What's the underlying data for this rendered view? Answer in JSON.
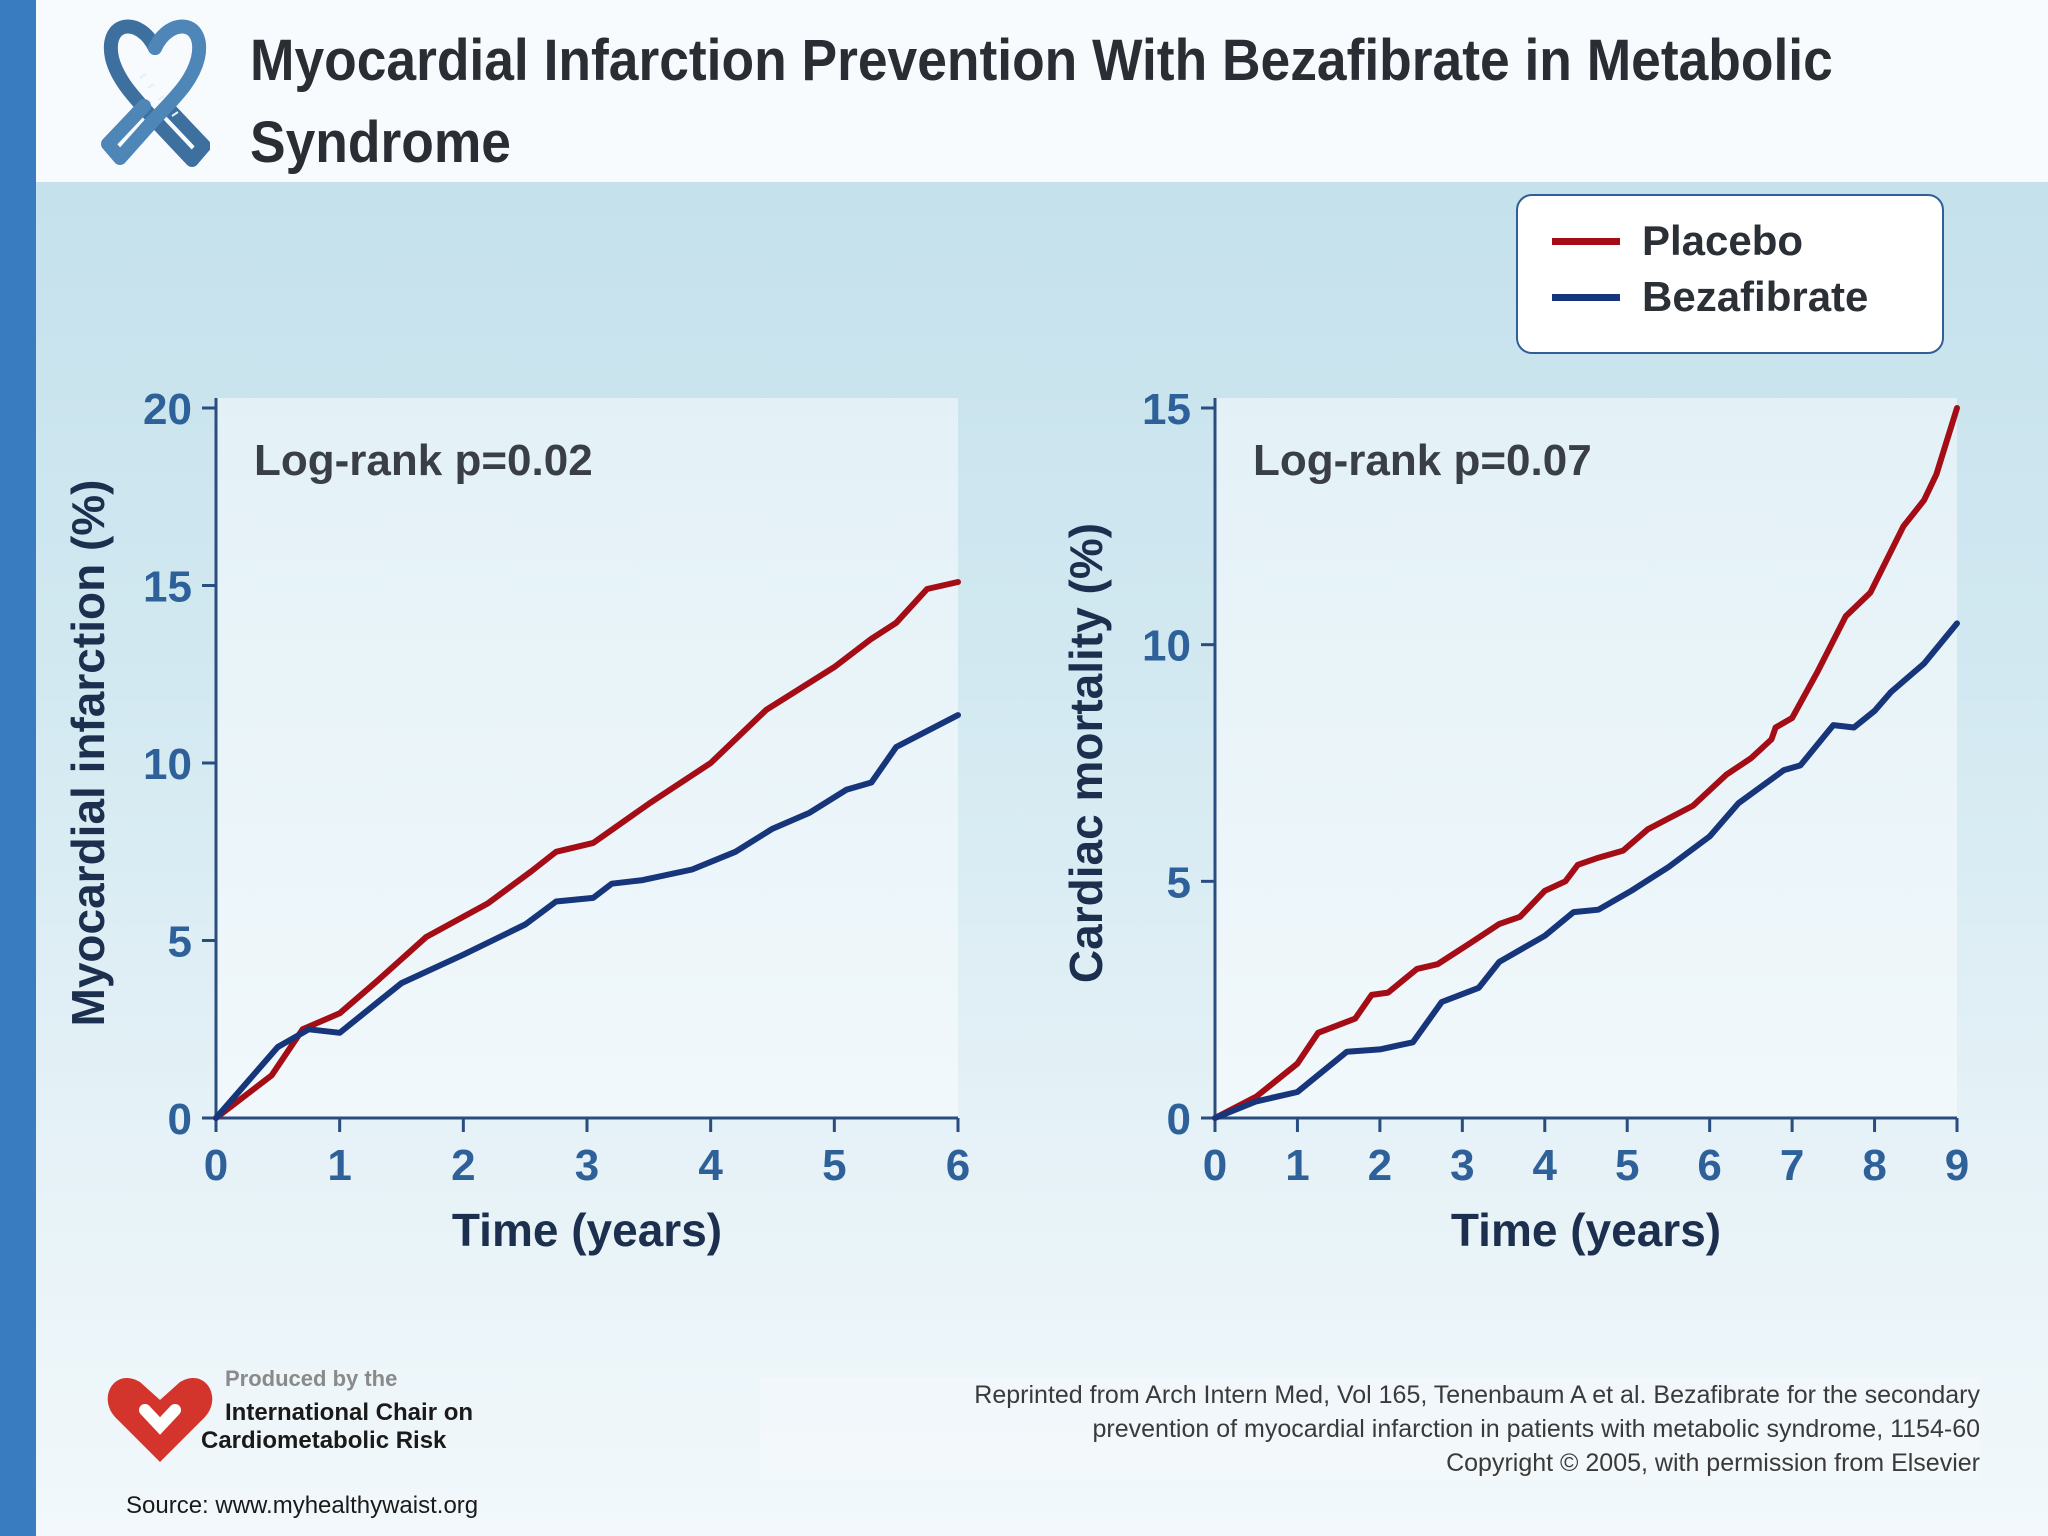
{
  "slide": {
    "title": "Myocardial Infarction Prevention With Bezafibrate in Metabolic Syndrome"
  },
  "legend": {
    "items": [
      {
        "label": "Placebo",
        "color": "#a50d16"
      },
      {
        "label": "Bezafibrate",
        "color": "#17357a"
      }
    ]
  },
  "chart_data": [
    {
      "type": "line",
      "annotation": "Log-rank p=0.02",
      "xlabel": "Time (years)",
      "ylabel": "Myocardial infarction (%)",
      "xlim": [
        0,
        6
      ],
      "ylim": [
        0,
        20
      ],
      "xticks": [
        0,
        1,
        2,
        3,
        4,
        5,
        6
      ],
      "yticks": [
        0,
        5,
        10,
        15,
        20
      ],
      "grid": false,
      "series": [
        {
          "name": "Placebo",
          "color": "#a50d16",
          "points": [
            [
              0,
              0
            ],
            [
              0.45,
              1.2
            ],
            [
              0.7,
              2.5
            ],
            [
              1,
              2.95
            ],
            [
              1.3,
              3.85
            ],
            [
              1.7,
              5.1
            ],
            [
              2.2,
              6.05
            ],
            [
              2.55,
              6.95
            ],
            [
              2.75,
              7.5
            ],
            [
              3.05,
              7.75
            ],
            [
              3.5,
              8.85
            ],
            [
              4,
              10
            ],
            [
              4.45,
              11.5
            ],
            [
              5,
              12.7
            ],
            [
              5.3,
              13.5
            ],
            [
              5.5,
              13.95
            ],
            [
              5.75,
              14.9
            ],
            [
              6,
              15.1
            ]
          ]
        },
        {
          "name": "Bezafibrate",
          "color": "#17357a",
          "points": [
            [
              0,
              0
            ],
            [
              0.5,
              2.0
            ],
            [
              0.75,
              2.5
            ],
            [
              1,
              2.4
            ],
            [
              1.5,
              3.8
            ],
            [
              2,
              4.6
            ],
            [
              2.5,
              5.45
            ],
            [
              2.75,
              6.1
            ],
            [
              3.05,
              6.2
            ],
            [
              3.2,
              6.6
            ],
            [
              3.45,
              6.7
            ],
            [
              3.85,
              7.0
            ],
            [
              4.2,
              7.5
            ],
            [
              4.5,
              8.15
            ],
            [
              4.8,
              8.6
            ],
            [
              5.1,
              9.25
            ],
            [
              5.3,
              9.45
            ],
            [
              5.5,
              10.45
            ],
            [
              6,
              11.35
            ]
          ]
        }
      ]
    },
    {
      "type": "line",
      "annotation": "Log-rank p=0.07",
      "xlabel": "Time (years)",
      "ylabel": "Cardiac mortality (%)",
      "xlim": [
        0,
        9
      ],
      "ylim": [
        0,
        15
      ],
      "xticks": [
        0,
        1,
        2,
        3,
        4,
        5,
        6,
        7,
        8,
        9
      ],
      "yticks": [
        0,
        5,
        10,
        15
      ],
      "grid": false,
      "series": [
        {
          "name": "Placebo",
          "color": "#a50d16",
          "points": [
            [
              0,
              0
            ],
            [
              0.5,
              0.45
            ],
            [
              1,
              1.15
            ],
            [
              1.25,
              1.8
            ],
            [
              1.7,
              2.1
            ],
            [
              1.9,
              2.6
            ],
            [
              2.1,
              2.65
            ],
            [
              2.45,
              3.15
            ],
            [
              2.7,
              3.25
            ],
            [
              3.1,
              3.7
            ],
            [
              3.45,
              4.1
            ],
            [
              3.7,
              4.25
            ],
            [
              4,
              4.8
            ],
            [
              4.25,
              5.0
            ],
            [
              4.4,
              5.35
            ],
            [
              4.65,
              5.5
            ],
            [
              4.95,
              5.65
            ],
            [
              5.25,
              6.1
            ],
            [
              5.8,
              6.6
            ],
            [
              6.2,
              7.25
            ],
            [
              6.5,
              7.6
            ],
            [
              6.75,
              8.0
            ],
            [
              6.8,
              8.25
            ],
            [
              7,
              8.45
            ],
            [
              7.3,
              9.4
            ],
            [
              7.65,
              10.6
            ],
            [
              7.95,
              11.1
            ],
            [
              8.35,
              12.5
            ],
            [
              8.6,
              13.05
            ],
            [
              8.75,
              13.6
            ],
            [
              9,
              15
            ]
          ]
        },
        {
          "name": "Bezafibrate",
          "color": "#17357a",
          "points": [
            [
              0,
              0
            ],
            [
              0.5,
              0.35
            ],
            [
              1,
              0.55
            ],
            [
              1.6,
              1.4
            ],
            [
              2,
              1.45
            ],
            [
              2.4,
              1.6
            ],
            [
              2.75,
              2.45
            ],
            [
              3.2,
              2.75
            ],
            [
              3.45,
              3.3
            ],
            [
              4,
              3.85
            ],
            [
              4.35,
              4.35
            ],
            [
              4.65,
              4.4
            ],
            [
              5.05,
              4.8
            ],
            [
              5.5,
              5.3
            ],
            [
              6,
              5.95
            ],
            [
              6.35,
              6.65
            ],
            [
              6.9,
              7.35
            ],
            [
              7.1,
              7.45
            ],
            [
              7.5,
              8.3
            ],
            [
              7.75,
              8.25
            ],
            [
              8,
              8.6
            ],
            [
              8.2,
              9.0
            ],
            [
              8.6,
              9.6
            ],
            [
              9,
              10.45
            ]
          ]
        }
      ]
    }
  ],
  "footer": {
    "producer_line1": "Produced by the",
    "producer_line2": "International Chair on",
    "producer_line3": "Cardiometabolic Risk",
    "citation_line1": "Reprinted from Arch Intern Med, Vol 165, Tenenbaum A et al. Bezafibrate for the secondary",
    "citation_line2": "prevention of myocardial infarction in patients with metabolic syndrome, 1154-60",
    "citation_line3": "Copyright © 2005, with permission from Elsevier",
    "source": "Source: www.myhealthywaist.org"
  }
}
